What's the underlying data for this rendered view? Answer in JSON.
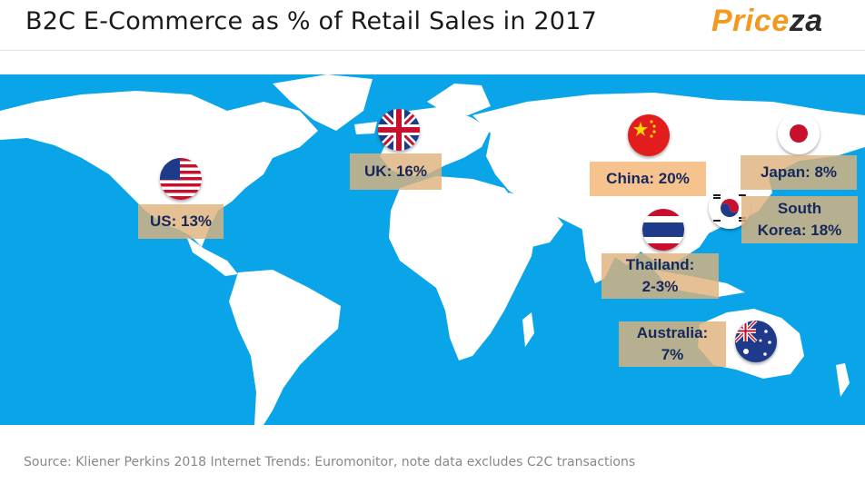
{
  "header": {
    "title": "B2C E-Commerce as % of Retail Sales in 2017",
    "logo_part1": "Price",
    "logo_part2": "za"
  },
  "colors": {
    "ocean": "#0aa4e8",
    "land": "#ffffff",
    "label_bg": "#deb27c",
    "label_text": "#15285a",
    "logo_orange": "#f39a1e"
  },
  "map": {
    "countries": [
      {
        "id": "us",
        "label": "US: 13%",
        "flag": "us-flag-icon"
      },
      {
        "id": "uk",
        "label": "UK: 16%",
        "flag": "uk-flag-icon"
      },
      {
        "id": "china",
        "label": "China: 20%",
        "flag": "china-flag-icon"
      },
      {
        "id": "japan",
        "label": "Japan: 8%",
        "flag": "japan-flag-icon"
      },
      {
        "id": "south_korea",
        "label_line1": "South",
        "label_line2": "Korea: 18%",
        "flag": "south-korea-flag-icon"
      },
      {
        "id": "thailand",
        "label_line1": "Thailand:",
        "label_line2": "2-3%",
        "flag": "thailand-flag-icon"
      },
      {
        "id": "australia",
        "label_line1": "Australia:",
        "label_line2": "7%",
        "flag": "australia-flag-icon"
      }
    ]
  },
  "footer": {
    "source": "Source: Kliener Perkins 2018 Internet Trends: Euromonitor, note data excludes C2C transactions"
  }
}
